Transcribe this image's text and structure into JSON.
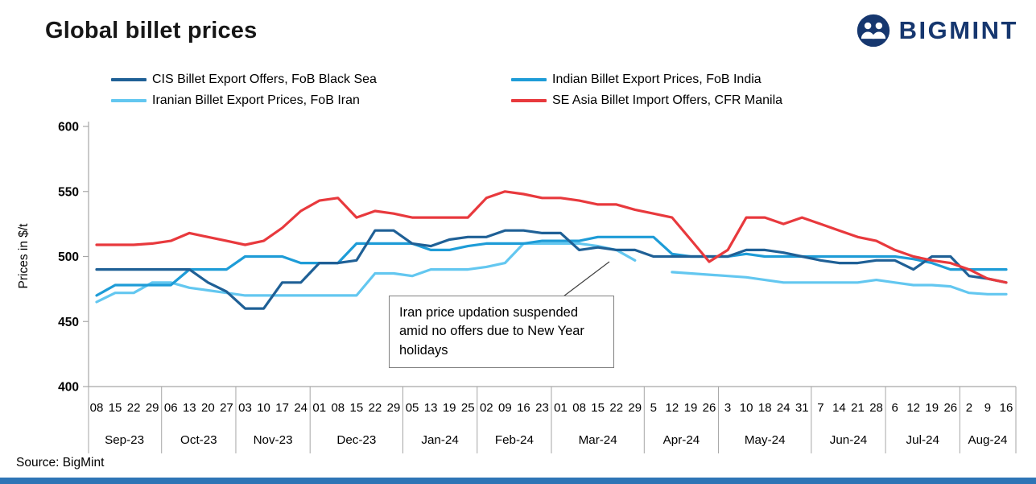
{
  "brand": {
    "name": "BIGMINT",
    "color": "#16376f"
  },
  "footer": {
    "source": "Source: BigMint"
  },
  "colors": {
    "accent_bar": "#2e75b6",
    "logo_navy": "#16376f",
    "axis_gray": "#a6a6a6"
  },
  "chart_data": {
    "type": "line",
    "title": "Global billet prices",
    "ylabel": "Prices in $/t",
    "legend_position": "top",
    "grid": false,
    "y_axis": {
      "min": 400,
      "max": 600,
      "ticks": [
        400,
        450,
        500,
        550,
        600
      ]
    },
    "categories": [
      {
        "month": "Sep-23",
        "days": [
          "08",
          "15",
          "22",
          "29"
        ]
      },
      {
        "month": "Oct-23",
        "days": [
          "06",
          "13",
          "20",
          "27"
        ]
      },
      {
        "month": "Nov-23",
        "days": [
          "03",
          "10",
          "17",
          "24"
        ]
      },
      {
        "month": "Dec-23",
        "days": [
          "01",
          "08",
          "15",
          "22",
          "29"
        ]
      },
      {
        "month": "Jan-24",
        "days": [
          "05",
          "13",
          "19",
          "25"
        ]
      },
      {
        "month": "Feb-24",
        "days": [
          "02",
          "09",
          "16",
          "23"
        ]
      },
      {
        "month": "Mar-24",
        "days": [
          "01",
          "08",
          "15",
          "22",
          "29"
        ]
      },
      {
        "month": "Apr-24",
        "days": [
          "5",
          "12",
          "19",
          "26"
        ]
      },
      {
        "month": "May-24",
        "days": [
          "3",
          "10",
          "18",
          "24",
          "31"
        ]
      },
      {
        "month": "Jun-24",
        "days": [
          "7",
          "14",
          "21",
          "28"
        ]
      },
      {
        "month": "Jul-24",
        "days": [
          "6",
          "12",
          "19",
          "26"
        ]
      },
      {
        "month": "Aug-24",
        "days": [
          "2",
          "9",
          "16"
        ]
      }
    ],
    "series": [
      {
        "key": "cis",
        "name": "CIS Billet Export Offers, FoB Black Sea",
        "color": "#1f6096",
        "values": [
          490,
          490,
          490,
          490,
          490,
          490,
          480,
          473,
          460,
          460,
          480,
          480,
          495,
          495,
          497,
          520,
          520,
          510,
          508,
          513,
          515,
          515,
          520,
          520,
          518,
          518,
          505,
          507,
          505,
          505,
          500,
          500,
          500,
          500,
          500,
          505,
          505,
          503,
          500,
          497,
          495,
          495,
          497,
          497,
          490,
          500,
          500,
          485,
          483,
          480
        ]
      },
      {
        "key": "indian",
        "name": "Indian Billet Export Prices, FoB India",
        "color": "#1e9cd7",
        "values": [
          470,
          478,
          478,
          478,
          478,
          490,
          490,
          490,
          500,
          500,
          500,
          495,
          495,
          495,
          510,
          510,
          510,
          510,
          505,
          505,
          508,
          510,
          510,
          510,
          512,
          512,
          512,
          515,
          515,
          515,
          515,
          502,
          500,
          500,
          500,
          502,
          500,
          500,
          500,
          500,
          500,
          500,
          500,
          500,
          498,
          495,
          490,
          490,
          490,
          490
        ]
      },
      {
        "key": "iranian",
        "name": "Iranian Billet Export Prices, FoB Iran",
        "color": "#63c7f0",
        "values": [
          465,
          472,
          472,
          480,
          480,
          476,
          474,
          472,
          470,
          470,
          470,
          470,
          470,
          470,
          470,
          487,
          487,
          485,
          490,
          490,
          490,
          492,
          495,
          510,
          510,
          510,
          510,
          508,
          505,
          497,
          null,
          488,
          487,
          486,
          485,
          484,
          482,
          480,
          480,
          480,
          480,
          480,
          482,
          480,
          478,
          478,
          477,
          472,
          471,
          471
        ]
      },
      {
        "key": "se_asia",
        "name": "SE Asia Billet Import Offers, CFR Manila",
        "color": "#e8393d",
        "values": [
          509,
          509,
          509,
          510,
          512,
          518,
          515,
          512,
          509,
          512,
          522,
          535,
          543,
          545,
          530,
          535,
          533,
          530,
          530,
          530,
          530,
          545,
          550,
          548,
          545,
          545,
          543,
          540,
          540,
          536,
          533,
          530,
          513,
          496,
          505,
          530,
          530,
          525,
          530,
          525,
          520,
          515,
          512,
          505,
          500,
          497,
          495,
          490,
          483,
          480
        ]
      }
    ],
    "annotation": {
      "text": "Iran price updation suspended amid no offers due to New Year holidays"
    }
  }
}
